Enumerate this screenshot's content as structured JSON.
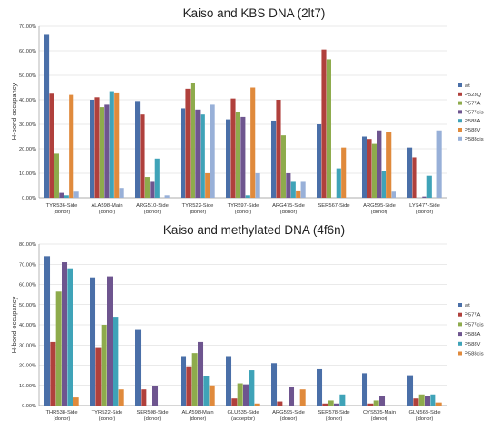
{
  "chart_data": [
    {
      "type": "bar",
      "title": "Kaiso and KBS DNA (2lt7)",
      "ylabel": "H-bond occupancy",
      "xlabel": "",
      "ylim": [
        0,
        70
      ],
      "yticks": [
        "0.00%",
        "10.00%",
        "20.00%",
        "30.00%",
        "40.00%",
        "50.00%",
        "60.00%",
        "70.00%"
      ],
      "grid": true,
      "legend_position": "right",
      "categories": [
        {
          "name": "TYR536-Side",
          "sub": "(donor)"
        },
        {
          "name": "ALA598-Main",
          "sub": "(donor)"
        },
        {
          "name": "ARG510-Side",
          "sub": "(donor)"
        },
        {
          "name": "TYR522-Side",
          "sub": "(donor)"
        },
        {
          "name": "TYR597-Side",
          "sub": "(donor)"
        },
        {
          "name": "ARG475-Side",
          "sub": "(donor)"
        },
        {
          "name": "SER567-Side",
          "sub": ""
        },
        {
          "name": "ARG595-Side",
          "sub": "(donor)"
        },
        {
          "name": "LYS477-Side",
          "sub": "(donor)"
        }
      ],
      "series": [
        {
          "name": "wt",
          "color": "#4a6fa8",
          "values": [
            66.5,
            40,
            39.5,
            36.5,
            32,
            31.5,
            30,
            25,
            20.5
          ]
        },
        {
          "name": "P523Q",
          "color": "#b0403c",
          "values": [
            42.5,
            41,
            34,
            44.5,
            40.5,
            40,
            60.5,
            24,
            16.5
          ]
        },
        {
          "name": "P577A",
          "color": "#8eab4c",
          "values": [
            18,
            37,
            8.5,
            47,
            35,
            25.5,
            56.5,
            22,
            0
          ]
        },
        {
          "name": "P577cis",
          "color": "#6e558f",
          "values": [
            2,
            38,
            6.5,
            36,
            33,
            10,
            0,
            27.5,
            0.5
          ]
        },
        {
          "name": "P588A",
          "color": "#3fa3b8",
          "values": [
            1,
            43.5,
            16,
            34,
            1,
            6.5,
            12,
            11,
            9
          ]
        },
        {
          "name": "P588V",
          "color": "#e08a3c",
          "values": [
            42,
            43,
            0,
            10,
            45,
            3,
            20.5,
            27,
            0
          ]
        },
        {
          "name": "P588cis",
          "color": "#98b0d8",
          "values": [
            2.5,
            4,
            1,
            38,
            10,
            6.5,
            0,
            2.5,
            27.5
          ]
        }
      ]
    },
    {
      "type": "bar",
      "title": "Kaiso and methylated DNA (4f6n)",
      "ylabel": "H-bond occupancy",
      "xlabel": "",
      "ylim": [
        0,
        80
      ],
      "yticks": [
        "0.00%",
        "10.00%",
        "20.00%",
        "30.00%",
        "40.00%",
        "50.00%",
        "60.00%",
        "70.00%",
        "80.00%"
      ],
      "grid": true,
      "legend_position": "right",
      "categories": [
        {
          "name": "THR538-Side",
          "sub": "(donor)"
        },
        {
          "name": "TYR522-Side",
          "sub": "(donor)"
        },
        {
          "name": "SER508-Side",
          "sub": "(donor)"
        },
        {
          "name": "ALA598-Main",
          "sub": "(donor)"
        },
        {
          "name": "GLU535-Side",
          "sub": "(acceptor)"
        },
        {
          "name": "ARG595-Side",
          "sub": "(donor)"
        },
        {
          "name": "SER578-Side",
          "sub": "(donor)"
        },
        {
          "name": "CYS505-Main",
          "sub": "(donor)"
        },
        {
          "name": "GLN563-Side",
          "sub": "(donor)"
        }
      ],
      "series": [
        {
          "name": "wt",
          "color": "#4a6fa8",
          "values": [
            74,
            63.5,
            37.5,
            24.5,
            24.5,
            21,
            18,
            16,
            15
          ]
        },
        {
          "name": "P577A",
          "color": "#b0403c",
          "values": [
            31.5,
            28.5,
            8,
            19,
            3.5,
            2,
            1,
            1,
            3.5
          ]
        },
        {
          "name": "P577cis",
          "color": "#8eab4c",
          "values": [
            56.5,
            40,
            0,
            26,
            11,
            0,
            2.5,
            2.5,
            5.5
          ]
        },
        {
          "name": "P588A",
          "color": "#6e558f",
          "values": [
            71,
            64,
            9.5,
            31.5,
            10.5,
            9,
            1,
            4.5,
            4.5
          ]
        },
        {
          "name": "P588V",
          "color": "#3fa3b8",
          "values": [
            68,
            44,
            0,
            14.5,
            17.5,
            0,
            5.5,
            0,
            5.5
          ]
        },
        {
          "name": "P588cis",
          "color": "#e08a3c",
          "values": [
            4,
            8,
            0,
            10,
            1,
            8,
            0,
            0,
            1.5
          ]
        }
      ]
    }
  ]
}
